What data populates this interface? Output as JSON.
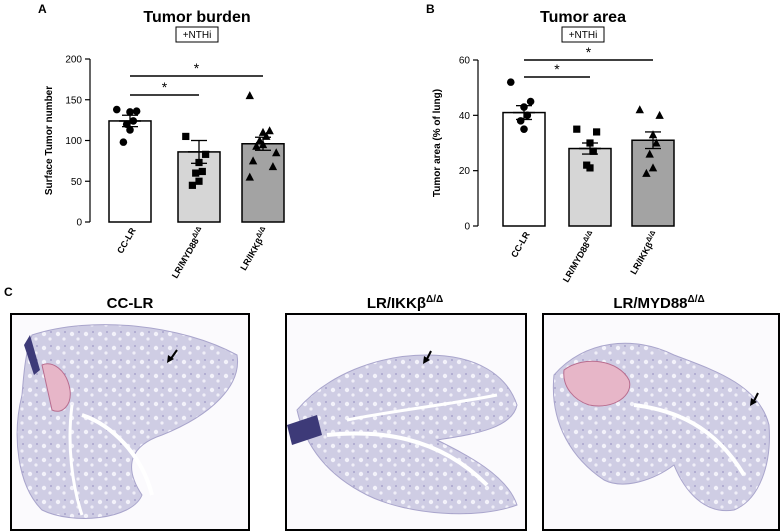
{
  "panels": {
    "a": "A",
    "b": "B",
    "c": "C"
  },
  "chart_data": [
    {
      "type": "bar",
      "title": "Tumor burden",
      "treatment": "+NTHi",
      "xlabel": "",
      "ylabel": "Surface Tumor number",
      "ylim": [
        0,
        200
      ],
      "yticks": [
        0,
        50,
        100,
        150,
        200
      ],
      "categories": [
        "CC-LR",
        "LR/MYD88",
        "LR/IKKβ"
      ],
      "category_superscripts": [
        "",
        "Δ/Δ",
        "Δ/Δ"
      ],
      "values": [
        124,
        86,
        96
      ],
      "errors": [
        7,
        14,
        8
      ],
      "bar_colors": [
        "#ffffff",
        "#d6d6d6",
        "#a3a3a3"
      ],
      "point_markers": [
        "circle",
        "square",
        "triangle"
      ],
      "points": [
        [
          138,
          136,
          135,
          124,
          120,
          113,
          98
        ],
        [
          105,
          83,
          73,
          62,
          60,
          50,
          45
        ],
        [
          155,
          112,
          110,
          105,
          100,
          95,
          93,
          85,
          75,
          68,
          55
        ]
      ],
      "significance": [
        {
          "from": 0,
          "to": 1,
          "label": "*"
        },
        {
          "from": 0,
          "to": 2,
          "label": "*"
        }
      ]
    },
    {
      "type": "bar",
      "title": "Tumor area",
      "treatment": "+NTHi",
      "xlabel": "",
      "ylabel": "Tumor area (% of lung)",
      "ylim": [
        0,
        60
      ],
      "yticks": [
        0,
        20,
        40,
        60
      ],
      "categories": [
        "CC-LR",
        "LR/MYD88",
        "LR/IKKβ"
      ],
      "category_superscripts": [
        "",
        "Δ/Δ",
        "Δ/Δ"
      ],
      "values": [
        41,
        28,
        31
      ],
      "errors": [
        2.5,
        2,
        3
      ],
      "bar_colors": [
        "#ffffff",
        "#d6d6d6",
        "#a3a3a3"
      ],
      "point_markers": [
        "circle",
        "square",
        "triangle"
      ],
      "points": [
        [
          52,
          45,
          43,
          40,
          38,
          35
        ],
        [
          35,
          34,
          30,
          27,
          22,
          21
        ],
        [
          42,
          40,
          33,
          30,
          26,
          21,
          19
        ]
      ],
      "significance": [
        {
          "from": 0,
          "to": 1,
          "label": "*"
        },
        {
          "from": 0,
          "to": 2,
          "label": "*"
        }
      ]
    }
  ],
  "histology": [
    {
      "label": "CC-LR",
      "sup": ""
    },
    {
      "label": "LR/IKKβ",
      "sup": "Δ/Δ"
    },
    {
      "label": "LR/MYD88",
      "sup": "Δ/Δ"
    }
  ]
}
